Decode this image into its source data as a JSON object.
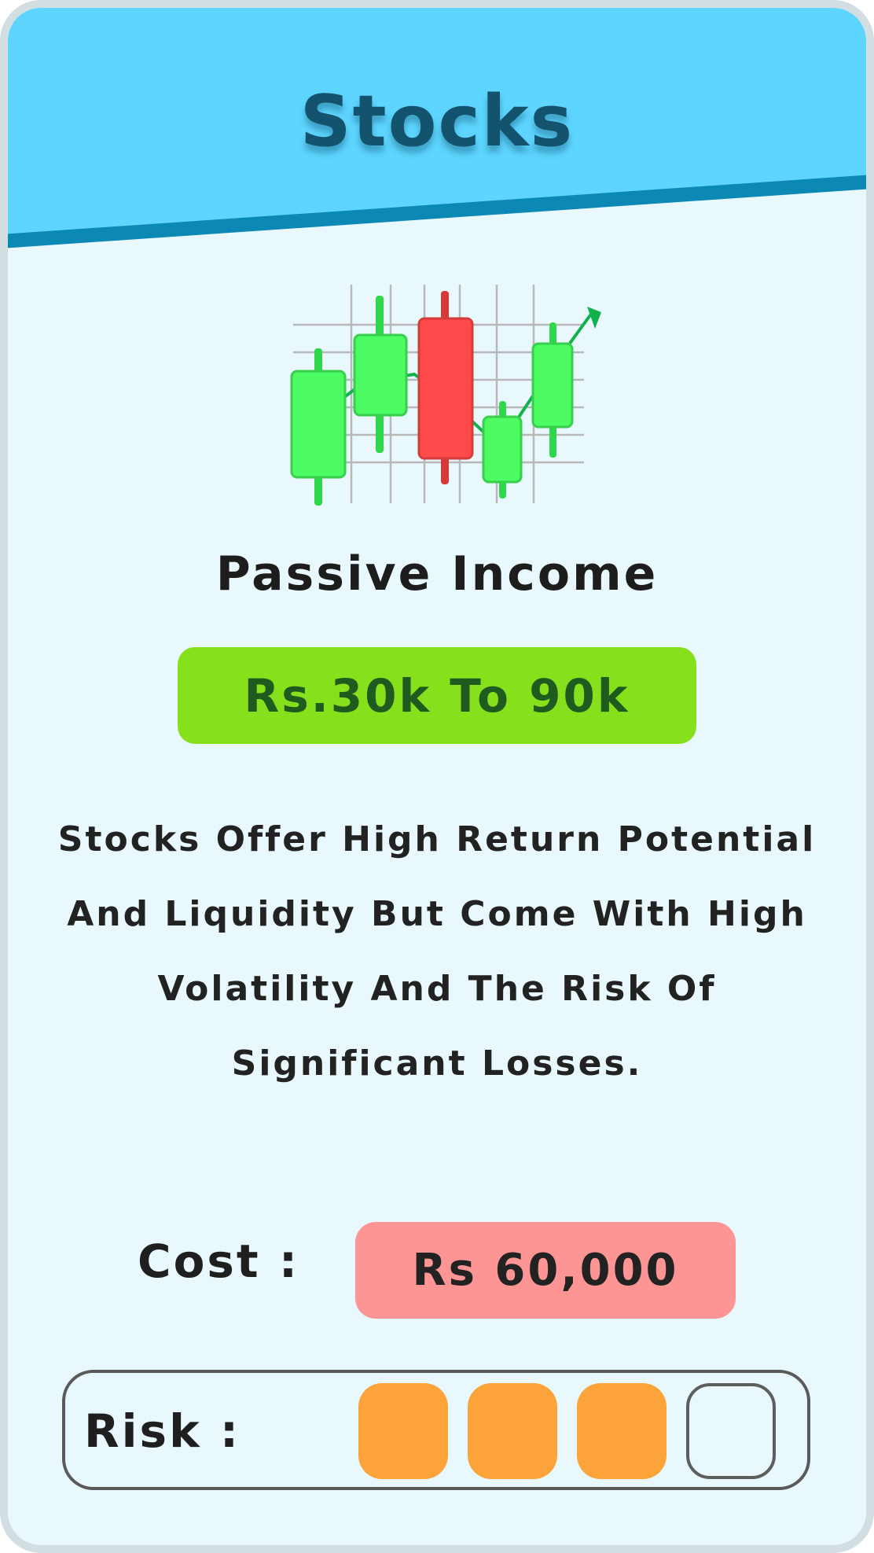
{
  "header": {
    "title": "Stocks",
    "background_color": "#5dd5fe",
    "stripe_color": "#0b88b3"
  },
  "illustration": {
    "icon": "candlestick-chart-icon",
    "candles": [
      {
        "color": "#4dfb63",
        "trend": "up"
      },
      {
        "color": "#4dfb63",
        "trend": "up"
      },
      {
        "color": "#fe4a4a",
        "trend": "down"
      },
      {
        "color": "#4dfb63",
        "trend": "up"
      },
      {
        "color": "#4dfb63",
        "trend": "up"
      }
    ],
    "arrow_color": "#11b24c"
  },
  "income": {
    "label": "Passive Income",
    "range": "Rs.30k To 90k",
    "badge_color": "#86e01c"
  },
  "description": "Stocks Offer High Return Potential And Liquidity But Come With High Volatility And The Risk Of Significant Losses.",
  "cost": {
    "label": "Cost :",
    "value": "Rs 60,000",
    "badge_color": "#fe9595"
  },
  "risk": {
    "label": "Risk :",
    "level": 3,
    "max": 4,
    "fill_color": "#fca33a"
  }
}
